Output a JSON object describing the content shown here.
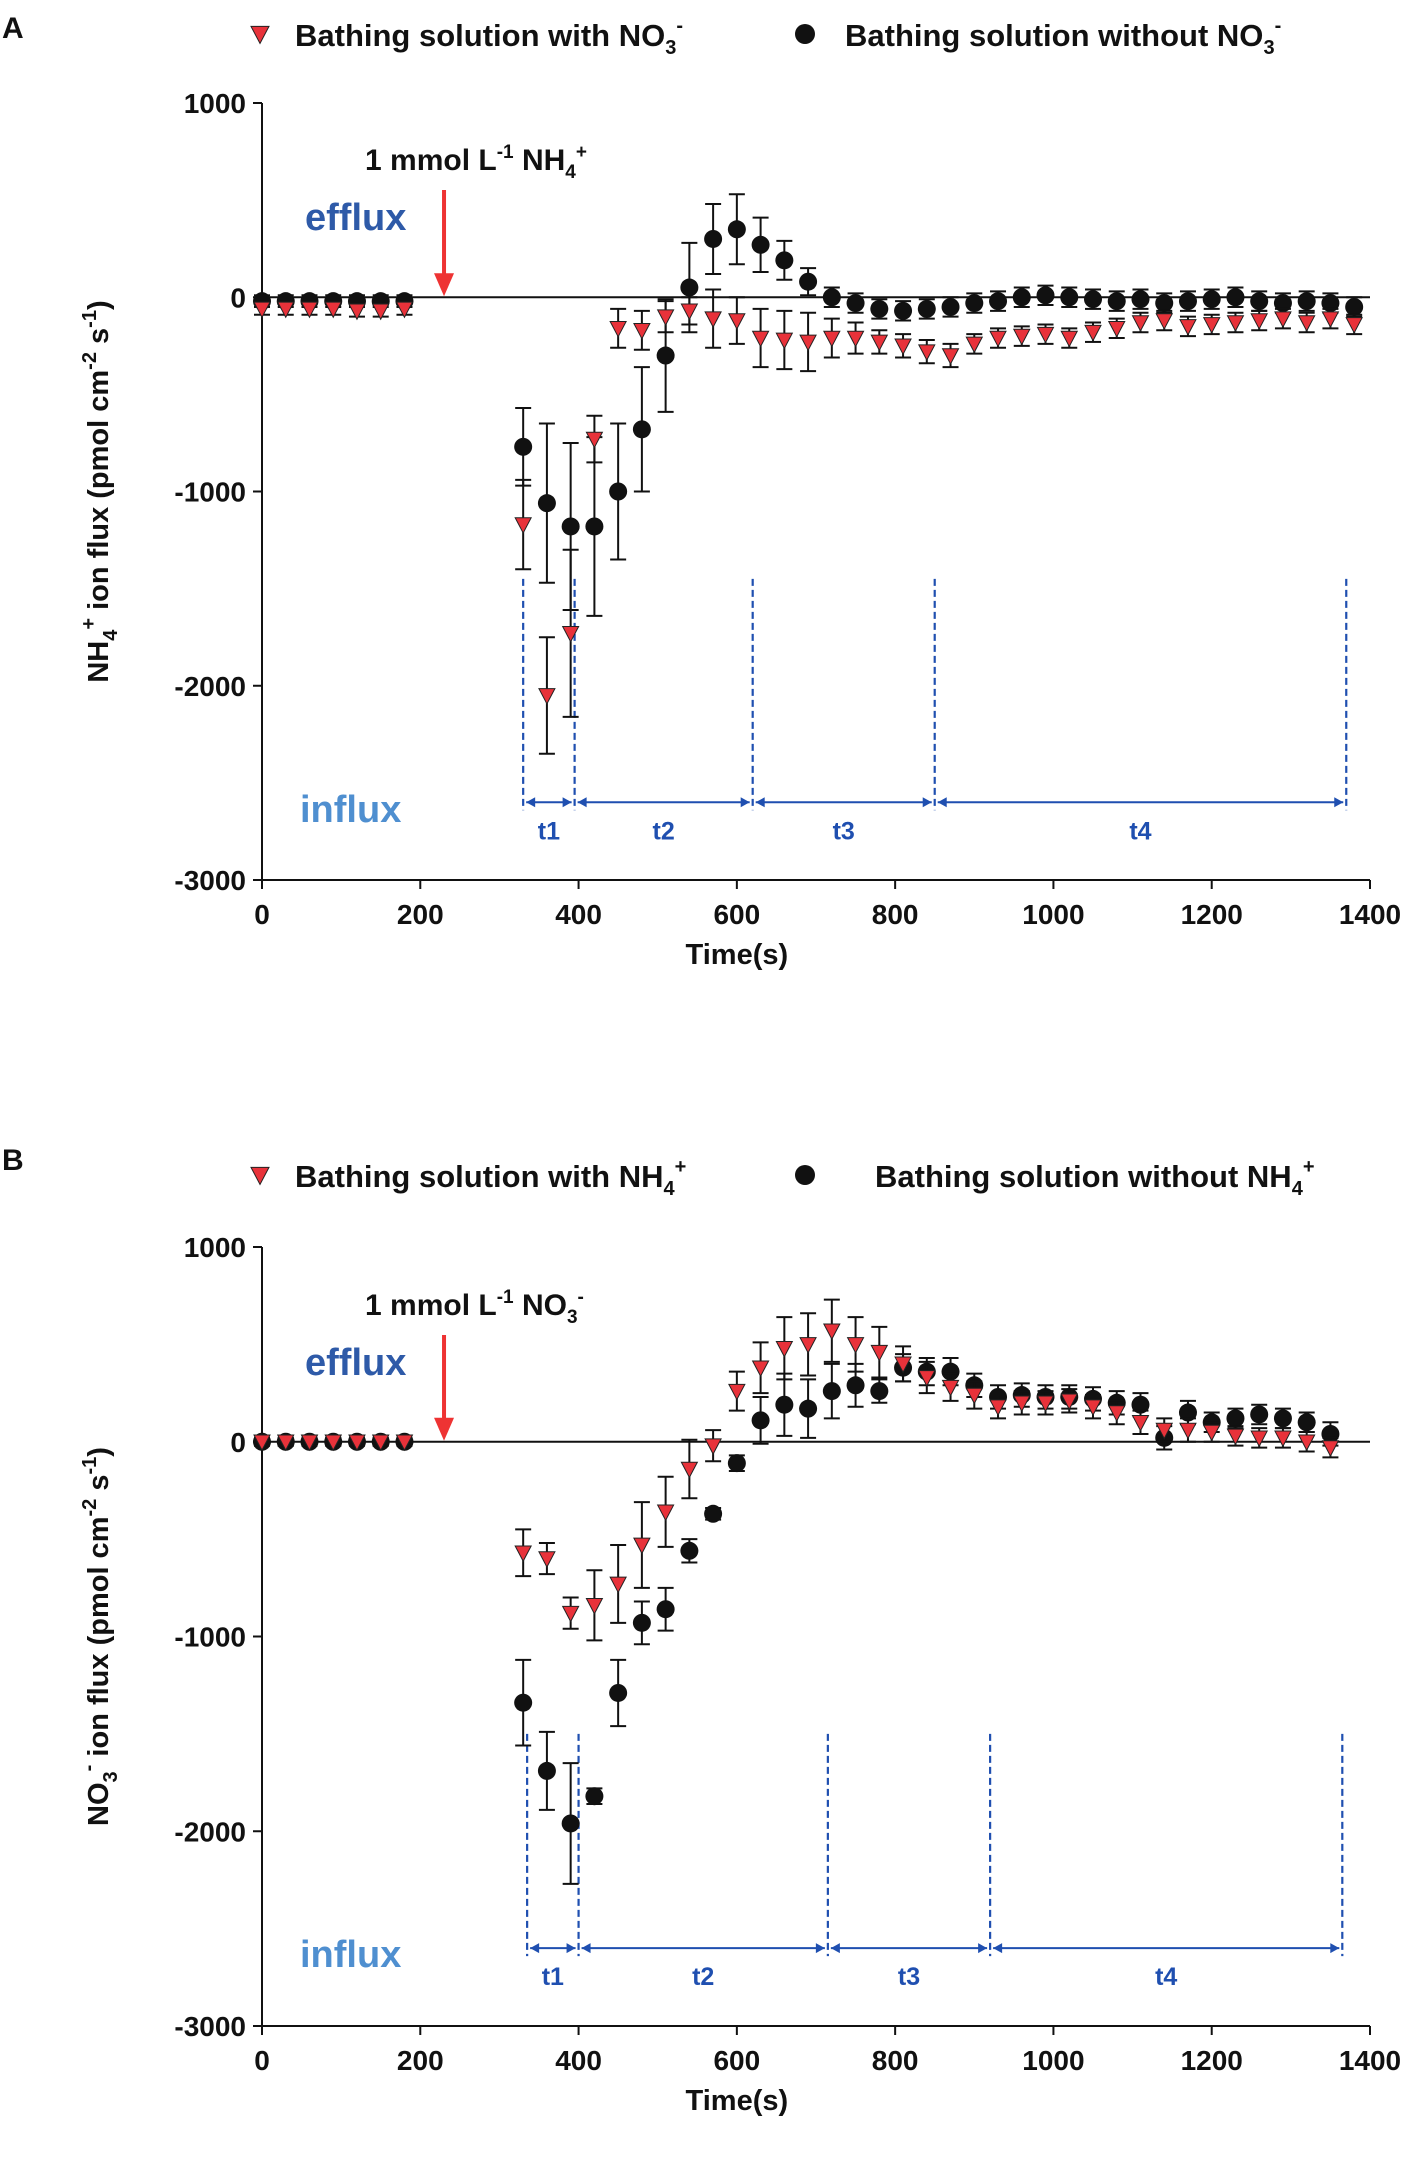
{
  "colors": {
    "triangle": "#e8323a",
    "circle": "#111111",
    "annotation_blue": "#2e5aa8",
    "period_blue": "#1f4fb0",
    "arrow_red": "#ee3333",
    "axis": "#111111"
  },
  "chart_data": [
    {
      "type": "scatter",
      "panel_label": "A",
      "title": "",
      "xlabel": "Time(s)",
      "ylabel_parts": [
        "NH",
        "4",
        "+",
        " ion flux (pmol cm",
        "-2",
        " s",
        "-1",
        ")"
      ],
      "xlim": [
        0,
        1400
      ],
      "ylim": [
        -3000,
        1000
      ],
      "x_ticks": [
        0,
        200,
        400,
        600,
        800,
        1000,
        1200,
        1400
      ],
      "y_ticks": [
        1000,
        0,
        -1000,
        -2000,
        -3000
      ],
      "legend": [
        {
          "marker": "triangle",
          "label": "Bathing solution  with NO",
          "sub": "3",
          "sup": "-"
        },
        {
          "marker": "circle",
          "label": "Bathing solution without NO",
          "sub": "3",
          "sup": "-"
        }
      ],
      "treatment_label": {
        "prefix": "1 mmol L",
        "sup1": "-1",
        "mid": " NH",
        "sub": "4",
        "sup2": "+"
      },
      "treatment_x": 230,
      "efflux_label": "efflux",
      "influx_label": "influx",
      "periods": [
        {
          "label": "t1",
          "start": 330,
          "end": 395
        },
        {
          "label": "t2",
          "start": 395,
          "end": 620
        },
        {
          "label": "t3",
          "start": 620,
          "end": 850
        },
        {
          "label": "t4",
          "start": 850,
          "end": 1370
        }
      ],
      "period_line_top": -1450,
      "period_arrow_y": -2600,
      "series": [
        {
          "name": "Bathing solution  with NO3-",
          "marker": "triangle",
          "points": [
            [
              0,
              -60,
              30
            ],
            [
              30,
              -60,
              30
            ],
            [
              60,
              -60,
              30
            ],
            [
              90,
              -60,
              30
            ],
            [
              120,
              -70,
              30
            ],
            [
              150,
              -70,
              30
            ],
            [
              180,
              -60,
              30
            ],
            [
              330,
              -1170,
              230
            ],
            [
              360,
              -2050,
              300
            ],
            [
              390,
              -1730,
              430
            ],
            [
              420,
              -730,
              120
            ],
            [
              450,
              -160,
              100
            ],
            [
              480,
              -170,
              100
            ],
            [
              510,
              -100,
              80
            ],
            [
              540,
              -70,
              70
            ],
            [
              570,
              -110,
              150
            ],
            [
              600,
              -120,
              120
            ],
            [
              630,
              -210,
              150
            ],
            [
              660,
              -220,
              150
            ],
            [
              690,
              -230,
              150
            ],
            [
              720,
              -210,
              100
            ],
            [
              750,
              -210,
              80
            ],
            [
              780,
              -230,
              60
            ],
            [
              810,
              -250,
              60
            ],
            [
              840,
              -280,
              60
            ],
            [
              870,
              -300,
              60
            ],
            [
              900,
              -240,
              50
            ],
            [
              930,
              -210,
              50
            ],
            [
              960,
              -200,
              50
            ],
            [
              990,
              -190,
              50
            ],
            [
              1020,
              -210,
              50
            ],
            [
              1050,
              -180,
              50
            ],
            [
              1080,
              -160,
              50
            ],
            [
              1110,
              -130,
              50
            ],
            [
              1140,
              -120,
              50
            ],
            [
              1170,
              -150,
              50
            ],
            [
              1200,
              -140,
              50
            ],
            [
              1230,
              -130,
              50
            ],
            [
              1260,
              -120,
              50
            ],
            [
              1290,
              -110,
              50
            ],
            [
              1320,
              -130,
              50
            ],
            [
              1350,
              -110,
              50
            ],
            [
              1380,
              -140,
              50
            ]
          ]
        },
        {
          "name": "Bathing solution without NO3-",
          "marker": "circle",
          "points": [
            [
              0,
              -20,
              30
            ],
            [
              30,
              -20,
              30
            ],
            [
              60,
              -20,
              30
            ],
            [
              90,
              -20,
              30
            ],
            [
              120,
              -20,
              30
            ],
            [
              150,
              -20,
              30
            ],
            [
              180,
              -20,
              30
            ],
            [
              330,
              -770,
              200
            ],
            [
              360,
              -1060,
              410
            ],
            [
              390,
              -1180,
              430
            ],
            [
              420,
              -1180,
              460
            ],
            [
              450,
              -1000,
              350
            ],
            [
              480,
              -680,
              320
            ],
            [
              510,
              -300,
              290
            ],
            [
              540,
              50,
              230
            ],
            [
              570,
              300,
              180
            ],
            [
              600,
              350,
              180
            ],
            [
              630,
              270,
              140
            ],
            [
              660,
              190,
              100
            ],
            [
              690,
              80,
              70
            ],
            [
              720,
              0,
              50
            ],
            [
              750,
              -30,
              50
            ],
            [
              780,
              -60,
              50
            ],
            [
              810,
              -70,
              50
            ],
            [
              840,
              -60,
              50
            ],
            [
              870,
              -50,
              50
            ],
            [
              900,
              -30,
              50
            ],
            [
              930,
              -20,
              50
            ],
            [
              960,
              0,
              50
            ],
            [
              990,
              10,
              50
            ],
            [
              1020,
              0,
              50
            ],
            [
              1050,
              -10,
              50
            ],
            [
              1080,
              -20,
              50
            ],
            [
              1110,
              -10,
              50
            ],
            [
              1140,
              -30,
              50
            ],
            [
              1170,
              -20,
              50
            ],
            [
              1200,
              -10,
              50
            ],
            [
              1230,
              0,
              50
            ],
            [
              1260,
              -20,
              50
            ],
            [
              1290,
              -30,
              50
            ],
            [
              1320,
              -20,
              50
            ],
            [
              1350,
              -30,
              50
            ],
            [
              1380,
              -50,
              50
            ]
          ]
        }
      ]
    },
    {
      "type": "scatter",
      "panel_label": "B",
      "title": "",
      "xlabel": "Time(s)",
      "ylabel_parts": [
        "NO",
        "3",
        "-",
        " ion flux (pmol cm",
        "-2",
        " s",
        "-1",
        ")"
      ],
      "xlim": [
        0,
        1400
      ],
      "ylim": [
        -3000,
        1000
      ],
      "x_ticks": [
        0,
        200,
        400,
        600,
        800,
        1000,
        1200,
        1400
      ],
      "y_ticks": [
        1000,
        0,
        -1000,
        -2000,
        -3000
      ],
      "legend": [
        {
          "marker": "triangle",
          "label": "Bathing solution with NH",
          "sub": "4",
          "sup": "+"
        },
        {
          "marker": "circle",
          "label": "Bathing solution without NH",
          "sub": "4",
          "sup": "+"
        }
      ],
      "treatment_label": {
        "prefix": "1 mmol L",
        "sup1": "-1",
        "mid": " NO",
        "sub": "3",
        "sup2": "-"
      },
      "treatment_x": 230,
      "efflux_label": "efflux",
      "influx_label": "influx",
      "periods": [
        {
          "label": "t1",
          "start": 335,
          "end": 400
        },
        {
          "label": "t2",
          "start": 400,
          "end": 715
        },
        {
          "label": "t3",
          "start": 715,
          "end": 920
        },
        {
          "label": "t4",
          "start": 920,
          "end": 1365
        }
      ],
      "period_line_top": -1500,
      "period_arrow_y": -2600,
      "series": [
        {
          "name": "Bathing solution with NH4+",
          "marker": "triangle",
          "points": [
            [
              0,
              0,
              20
            ],
            [
              30,
              0,
              20
            ],
            [
              60,
              0,
              20
            ],
            [
              90,
              0,
              20
            ],
            [
              120,
              0,
              20
            ],
            [
              150,
              0,
              20
            ],
            [
              180,
              0,
              20
            ],
            [
              330,
              -570,
              120
            ],
            [
              360,
              -600,
              80
            ],
            [
              390,
              -880,
              80
            ],
            [
              420,
              -840,
              180
            ],
            [
              450,
              -730,
              200
            ],
            [
              480,
              -530,
              220
            ],
            [
              510,
              -360,
              180
            ],
            [
              540,
              -140,
              150
            ],
            [
              570,
              -20,
              80
            ],
            [
              600,
              260,
              100
            ],
            [
              630,
              380,
              130
            ],
            [
              660,
              480,
              160
            ],
            [
              690,
              500,
              160
            ],
            [
              720,
              570,
              160
            ],
            [
              750,
              500,
              140
            ],
            [
              780,
              460,
              130
            ],
            [
              810,
              400,
              90
            ],
            [
              840,
              330,
              80
            ],
            [
              870,
              280,
              70
            ],
            [
              900,
              240,
              70
            ],
            [
              930,
              180,
              60
            ],
            [
              960,
              200,
              60
            ],
            [
              990,
              200,
              60
            ],
            [
              1020,
              210,
              60
            ],
            [
              1050,
              180,
              60
            ],
            [
              1080,
              150,
              60
            ],
            [
              1110,
              100,
              60
            ],
            [
              1140,
              60,
              60
            ],
            [
              1170,
              60,
              60
            ],
            [
              1200,
              50,
              50
            ],
            [
              1230,
              30,
              50
            ],
            [
              1260,
              20,
              50
            ],
            [
              1290,
              20,
              50
            ],
            [
              1320,
              0,
              50
            ],
            [
              1350,
              -30,
              50
            ]
          ]
        },
        {
          "name": "Bathing solution without NH4+",
          "marker": "circle",
          "points": [
            [
              0,
              0,
              20
            ],
            [
              30,
              0,
              20
            ],
            [
              60,
              0,
              20
            ],
            [
              90,
              0,
              20
            ],
            [
              120,
              0,
              20
            ],
            [
              150,
              0,
              20
            ],
            [
              180,
              0,
              20
            ],
            [
              330,
              -1340,
              220
            ],
            [
              360,
              -1690,
              200
            ],
            [
              390,
              -1960,
              310
            ],
            [
              420,
              -1820,
              40
            ],
            [
              450,
              -1290,
              170
            ],
            [
              480,
              -930,
              110
            ],
            [
              510,
              -860,
              110
            ],
            [
              540,
              -560,
              60
            ],
            [
              570,
              -370,
              30
            ],
            [
              600,
              -110,
              40
            ],
            [
              630,
              110,
              120
            ],
            [
              660,
              190,
              160
            ],
            [
              690,
              170,
              150
            ],
            [
              720,
              260,
              140
            ],
            [
              750,
              290,
              110
            ],
            [
              780,
              260,
              60
            ],
            [
              810,
              380,
              70
            ],
            [
              840,
              360,
              70
            ],
            [
              870,
              360,
              70
            ],
            [
              900,
              290,
              60
            ],
            [
              930,
              230,
              60
            ],
            [
              960,
              240,
              60
            ],
            [
              990,
              230,
              60
            ],
            [
              1020,
              230,
              60
            ],
            [
              1050,
              220,
              60
            ],
            [
              1080,
              200,
              60
            ],
            [
              1110,
              190,
              60
            ],
            [
              1140,
              20,
              60
            ],
            [
              1170,
              150,
              60
            ],
            [
              1200,
              100,
              50
            ],
            [
              1230,
              120,
              50
            ],
            [
              1260,
              140,
              50
            ],
            [
              1290,
              120,
              50
            ],
            [
              1320,
              100,
              50
            ],
            [
              1350,
              40,
              60
            ]
          ]
        }
      ]
    }
  ]
}
